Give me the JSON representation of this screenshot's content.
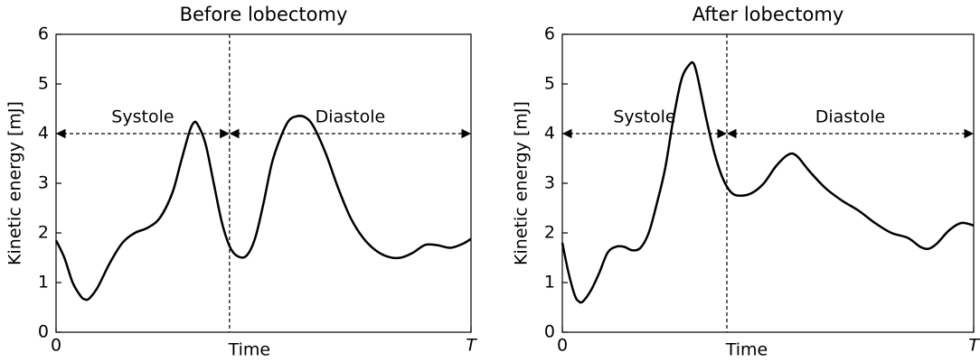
{
  "chart_data": [
    {
      "type": "line",
      "title": "Before lobectomy",
      "x_label": "Time",
      "y_label": "Kinetic energy [mJ]",
      "xlim": [
        0,
        1
      ],
      "xticks": [
        0,
        {
          "value": 1,
          "label": "T"
        }
      ],
      "ylim": [
        0,
        6
      ],
      "yticks": [
        0,
        1,
        2,
        3,
        4,
        5,
        6
      ],
      "divider_x": 0.418,
      "annotations": [
        {
          "text": "Systole",
          "x0": 0,
          "x1": 0.418,
          "y": 4
        },
        {
          "text": "Diastole",
          "x0": 0.418,
          "x1": 1,
          "y": 4
        }
      ],
      "series": [
        {
          "color": "#000000",
          "x": [
            0,
            0.02,
            0.04,
            0.06,
            0.07,
            0.08,
            0.1,
            0.13,
            0.16,
            0.19,
            0.22,
            0.25,
            0.28,
            0.3,
            0.32,
            0.33,
            0.34,
            0.36,
            0.38,
            0.4,
            0.42,
            0.44,
            0.46,
            0.48,
            0.5,
            0.52,
            0.54,
            0.56,
            0.58,
            0.6,
            0.62,
            0.65,
            0.68,
            0.71,
            0.74,
            0.77,
            0.8,
            0.83,
            0.86,
            0.89,
            0.92,
            0.95,
            0.98,
            1.0
          ],
          "values": [
            1.85,
            1.5,
            1.0,
            0.72,
            0.66,
            0.68,
            0.9,
            1.4,
            1.8,
            2.0,
            2.1,
            2.3,
            2.8,
            3.4,
            4.0,
            4.2,
            4.2,
            3.8,
            3.0,
            2.2,
            1.7,
            1.52,
            1.55,
            1.9,
            2.6,
            3.4,
            3.9,
            4.25,
            4.35,
            4.33,
            4.15,
            3.6,
            2.9,
            2.3,
            1.9,
            1.65,
            1.52,
            1.5,
            1.6,
            1.76,
            1.75,
            1.7,
            1.78,
            1.88
          ]
        }
      ]
    },
    {
      "type": "line",
      "title": "After lobectomy",
      "x_label": "Time",
      "y_label": "Kinetic energy [mJ]",
      "xlim": [
        0,
        1
      ],
      "xticks": [
        0,
        {
          "value": 1,
          "label": "T"
        }
      ],
      "ylim": [
        0,
        6
      ],
      "yticks": [
        0,
        1,
        2,
        3,
        4,
        5,
        6
      ],
      "divider_x": 0.4,
      "annotations": [
        {
          "text": "Systole",
          "x0": 0,
          "x1": 0.4,
          "y": 4
        },
        {
          "text": "Diastole",
          "x0": 0.4,
          "x1": 1,
          "y": 4
        }
      ],
      "series": [
        {
          "color": "#000000",
          "x": [
            0,
            0.015,
            0.03,
            0.04,
            0.05,
            0.07,
            0.09,
            0.11,
            0.13,
            0.15,
            0.17,
            0.19,
            0.21,
            0.23,
            0.25,
            0.27,
            0.29,
            0.31,
            0.32,
            0.33,
            0.35,
            0.37,
            0.39,
            0.41,
            0.43,
            0.46,
            0.49,
            0.52,
            0.55,
            0.57,
            0.6,
            0.64,
            0.68,
            0.72,
            0.76,
            0.8,
            0.84,
            0.87,
            0.89,
            0.91,
            0.94,
            0.97,
            1.0
          ],
          "values": [
            1.8,
            1.2,
            0.75,
            0.62,
            0.62,
            0.85,
            1.2,
            1.6,
            1.72,
            1.72,
            1.65,
            1.7,
            2.0,
            2.6,
            3.3,
            4.3,
            5.1,
            5.4,
            5.4,
            5.1,
            4.3,
            3.6,
            3.1,
            2.82,
            2.75,
            2.8,
            3.0,
            3.35,
            3.58,
            3.55,
            3.25,
            2.9,
            2.65,
            2.45,
            2.2,
            2.0,
            1.9,
            1.72,
            1.68,
            1.78,
            2.05,
            2.2,
            2.15
          ]
        }
      ]
    }
  ]
}
